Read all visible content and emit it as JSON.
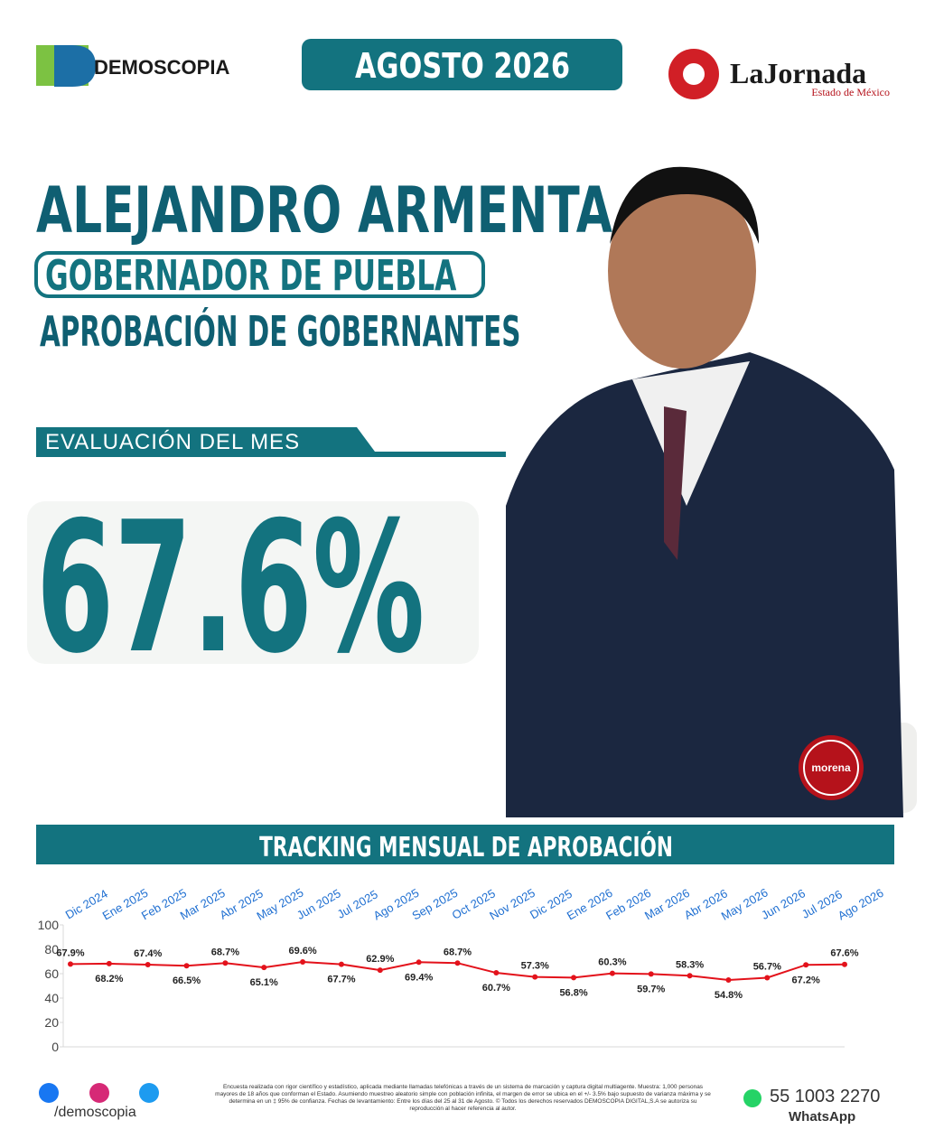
{
  "header": {
    "brand": "DEMOSCOPIA",
    "date": "AGOSTO 2026",
    "partner": "LaJornada",
    "partner_sub": "Estado de México"
  },
  "person": {
    "name": "ALEJANDRO ARMENTA",
    "role": "GOBERNADOR DE PUEBLA",
    "section": "APROBACIÓN DE GOBERNANTES",
    "party": "morena"
  },
  "evaluation": {
    "label": "EVALUACIÓN DEL MES",
    "value": "67.6%"
  },
  "chart_data": {
    "type": "line",
    "title": "TRACKING MENSUAL DE APROBACIÓN",
    "categories": [
      "Dic 2024",
      "Ene 2025",
      "Feb 2025",
      "Mar 2025",
      "Abr 2025",
      "May 2025",
      "Jun 2025",
      "Jul 2025",
      "Ago 2025",
      "Sep 2025",
      "Oct 2025",
      "Nov 2025",
      "Dic 2025",
      "Ene 2026",
      "Feb 2026",
      "Mar 2026",
      "Abr 2026",
      "May 2026",
      "Jun 2026",
      "Jul 2026",
      "Ago 2026"
    ],
    "values": [
      67.9,
      68.2,
      67.4,
      66.5,
      68.7,
      65.1,
      69.6,
      67.7,
      62.9,
      69.4,
      68.7,
      60.7,
      57.3,
      56.8,
      60.3,
      59.7,
      58.3,
      54.8,
      56.7,
      67.2,
      67.6
    ],
    "value_labels": [
      "67.9%",
      "68.2%",
      "67.4%",
      "66.5%",
      "68.7%",
      "65.1%",
      "69.6%",
      "67.7%",
      "62.9%",
      "69.4%",
      "68.7%",
      "60.7%",
      "57.3%",
      "56.8%",
      "60.3%",
      "59.7%",
      "58.3%",
      "54.8%",
      "56.7%",
      "67.2%",
      "67.6%"
    ],
    "color": "#e3121b",
    "ylim": [
      0,
      100
    ],
    "yticks": [
      0,
      20,
      40,
      60,
      80,
      100
    ],
    "grid": false
  },
  "footer": {
    "social": "/demoscopia",
    "note": "Encuesta realizada con rigor científico y estadístico, aplicada mediante llamadas telefónicas a través de un sistema de marcación y captura digital multiagente. Muestra: 1,000 personas mayores de 18 años que conforman el Estado. Asumiendo muestreo aleatorio simple con población infinita, el margen de error se ubica en el +/- 3.5% bajo supuesto de varianza máxima y se determina en un ‡ 95% de confianza. Fechas de levantamiento: Entre los días del 25 al 31 de Agosto. © Todos los derechos reservados DEMOSCOPIA DIGITAL,S.A se autoriza su reproducción al hacer referencia al autor.",
    "phone": "55 1003 2270",
    "phone_label": "WhatsApp"
  }
}
